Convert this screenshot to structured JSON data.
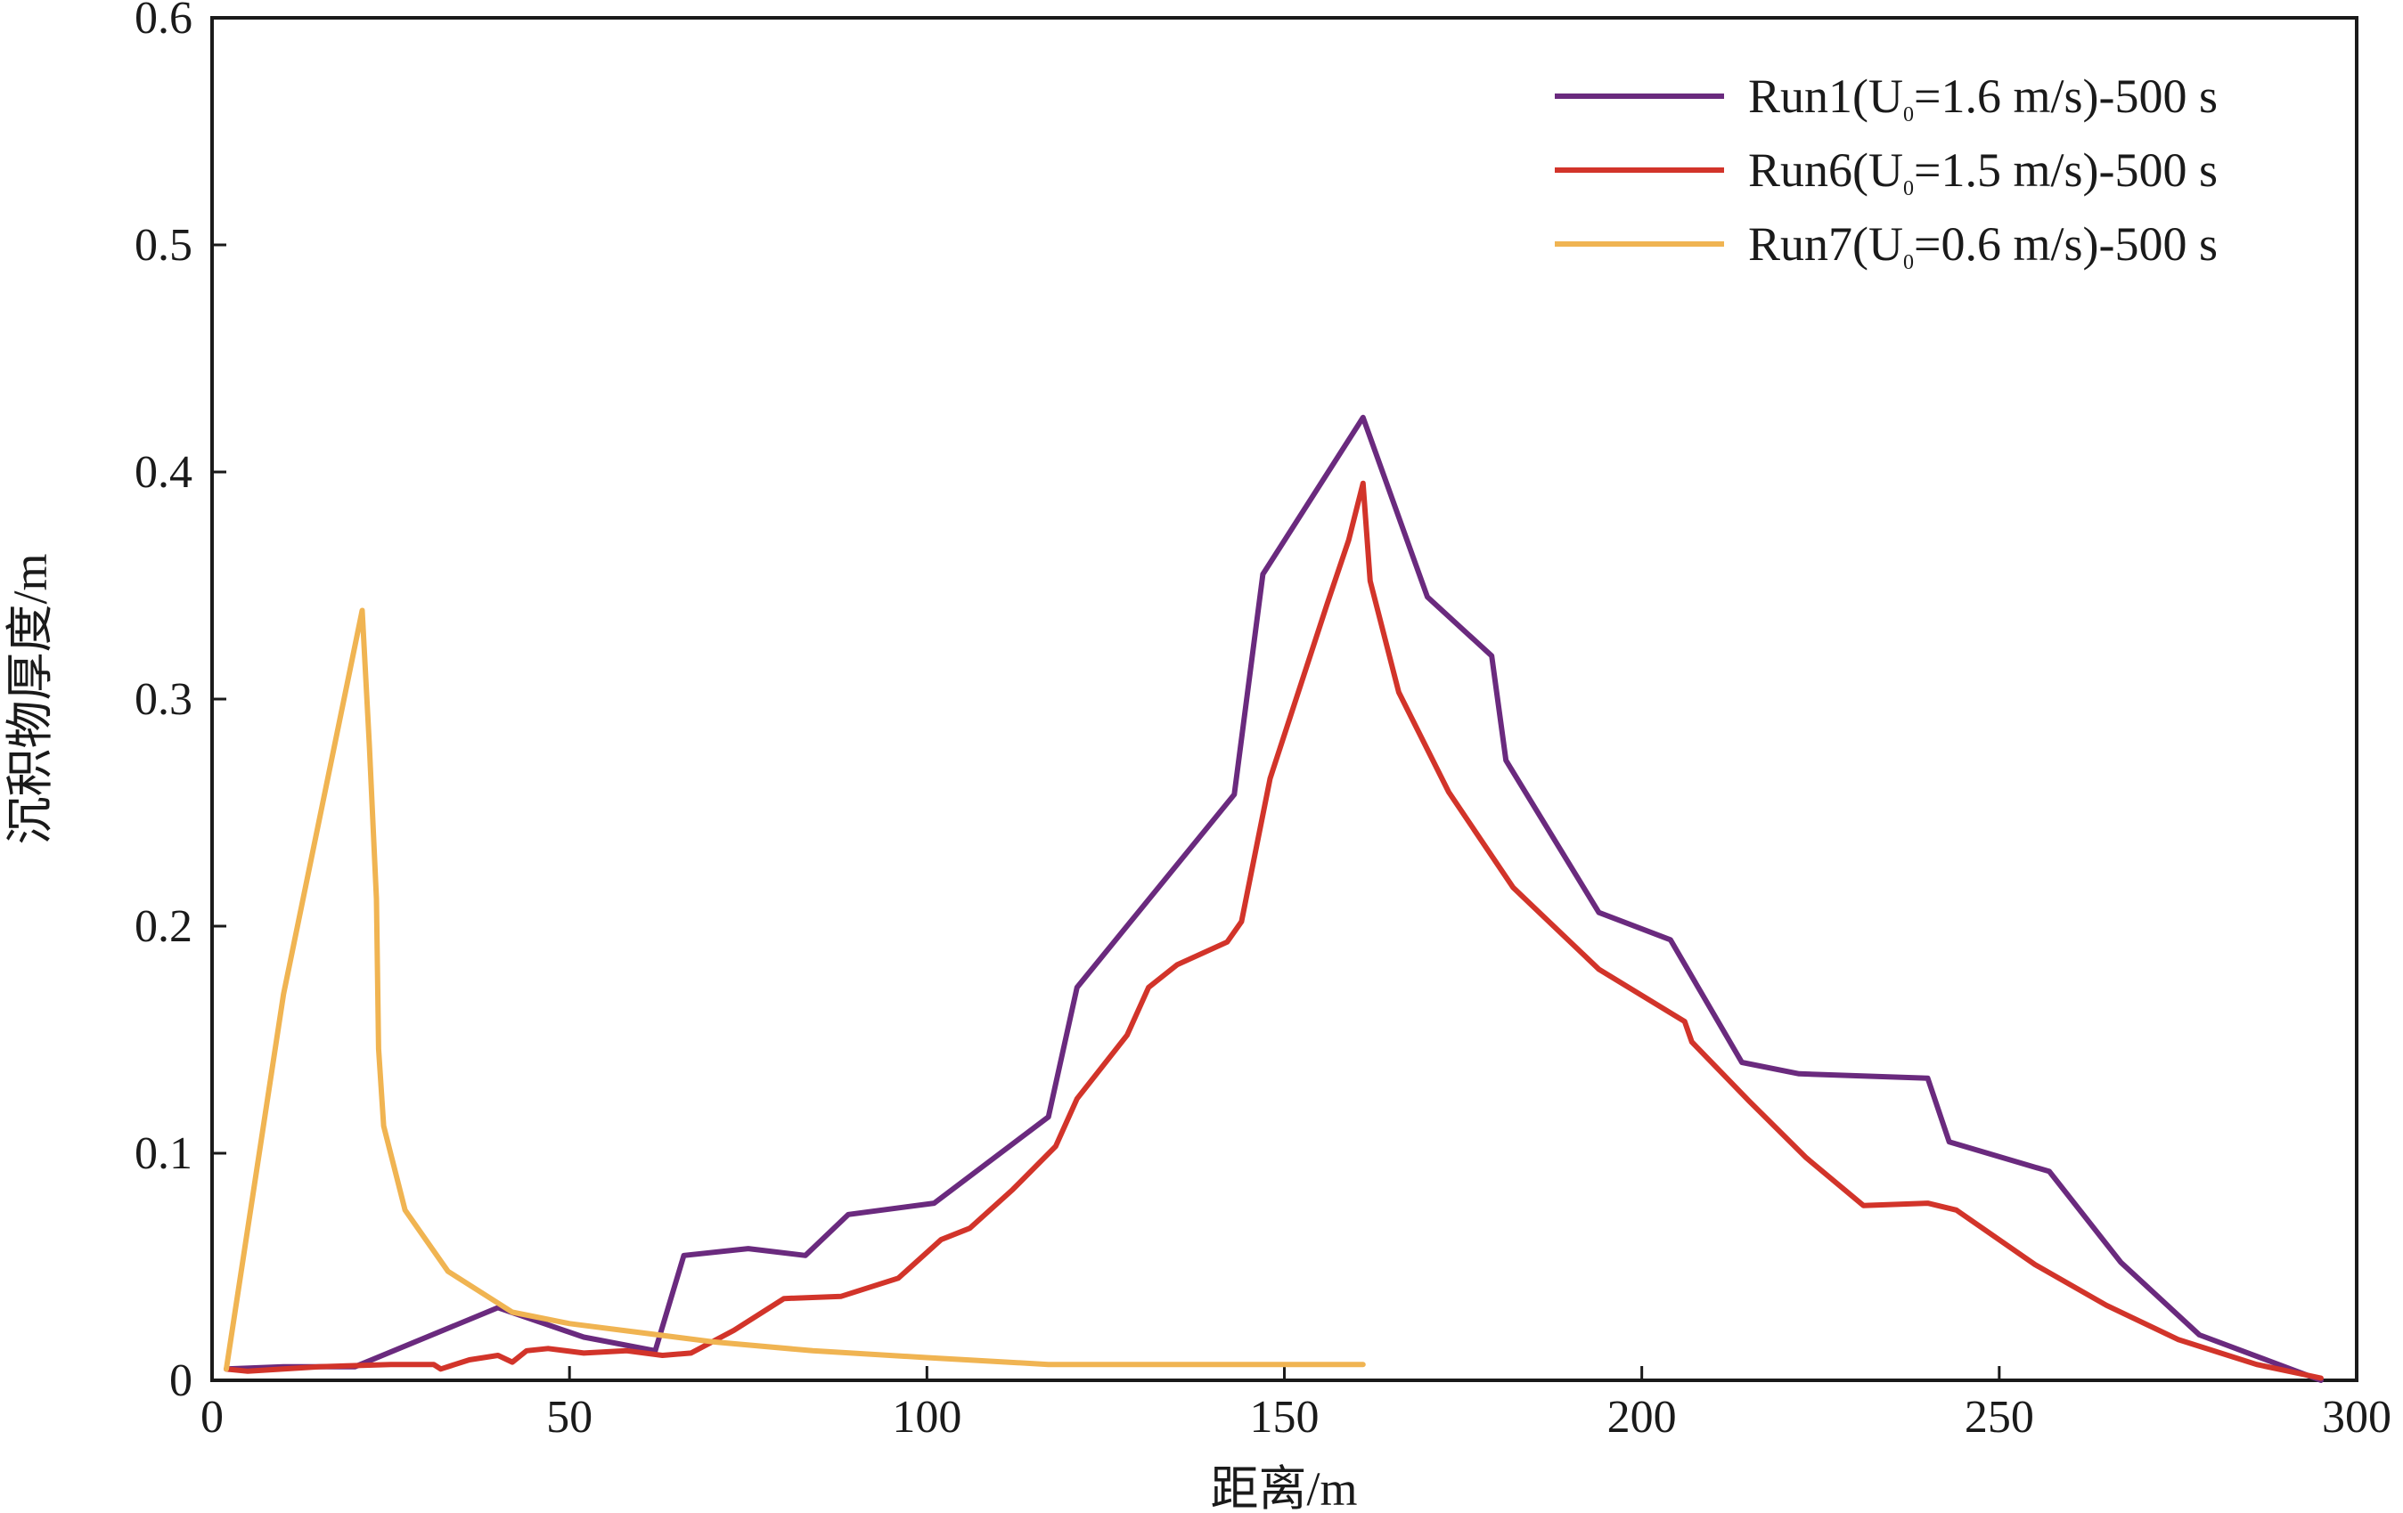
{
  "chart_data": {
    "type": "line",
    "xlabel": "距离/m",
    "ylabel": "沉积物厚度/m",
    "xlim": [
      0,
      300
    ],
    "ylim": [
      0,
      0.6
    ],
    "x_ticks": [
      "0",
      "50",
      "100",
      "150",
      "200",
      "250",
      "300"
    ],
    "y_ticks": [
      "0",
      "0.1",
      "0.2",
      "0.3",
      "0.4",
      "0.5",
      "0.6"
    ],
    "grid": false,
    "legend_position": "top-right",
    "series": [
      {
        "name": "Run1(U₀=1.6 m/s)-500 s",
        "label_prefix": "Run1(U",
        "label_sub": "0",
        "label_suffix": "=1.6 m/s)-500 s",
        "color": "#6a2a7e",
        "points": [
          [
            2,
            0.005
          ],
          [
            10,
            0.006
          ],
          [
            20,
            0.006
          ],
          [
            40,
            0.032
          ],
          [
            52,
            0.019
          ],
          [
            62,
            0.013
          ],
          [
            66,
            0.055
          ],
          [
            75,
            0.058
          ],
          [
            83,
            0.055
          ],
          [
            89,
            0.073
          ],
          [
            101,
            0.078
          ],
          [
            117,
            0.116
          ],
          [
            121,
            0.173
          ],
          [
            143,
            0.258
          ],
          [
            147,
            0.355
          ],
          [
            161,
            0.424
          ],
          [
            170,
            0.345
          ],
          [
            179,
            0.319
          ],
          [
            181,
            0.273
          ],
          [
            194,
            0.206
          ],
          [
            204,
            0.194
          ],
          [
            214,
            0.14
          ],
          [
            222,
            0.135
          ],
          [
            240,
            0.133
          ],
          [
            243,
            0.105
          ],
          [
            257,
            0.092
          ],
          [
            267,
            0.052
          ],
          [
            278,
            0.02
          ],
          [
            295,
            0.0
          ]
        ]
      },
      {
        "name": "Run6(U₀=1.5 m/s)-500 s",
        "label_prefix": "Run6(U",
        "label_sub": "0",
        "label_suffix": "=1.5 m/s)-500 s",
        "color": "#d2342a",
        "points": [
          [
            2,
            0.005
          ],
          [
            5,
            0.004
          ],
          [
            15,
            0.006
          ],
          [
            25,
            0.007
          ],
          [
            31,
            0.007
          ],
          [
            32,
            0.005
          ],
          [
            36,
            0.009
          ],
          [
            40,
            0.011
          ],
          [
            42,
            0.008
          ],
          [
            44,
            0.013
          ],
          [
            47,
            0.014
          ],
          [
            52,
            0.012
          ],
          [
            58,
            0.013
          ],
          [
            63,
            0.011
          ],
          [
            67,
            0.012
          ],
          [
            73,
            0.022
          ],
          [
            80,
            0.036
          ],
          [
            88,
            0.037
          ],
          [
            96,
            0.045
          ],
          [
            102,
            0.062
          ],
          [
            106,
            0.067
          ],
          [
            112,
            0.084
          ],
          [
            118,
            0.103
          ],
          [
            121,
            0.124
          ],
          [
            128,
            0.152
          ],
          [
            131,
            0.173
          ],
          [
            135,
            0.183
          ],
          [
            142,
            0.193
          ],
          [
            144,
            0.202
          ],
          [
            148,
            0.265
          ],
          [
            156,
            0.342
          ],
          [
            159,
            0.37
          ],
          [
            161,
            0.395
          ],
          [
            162,
            0.352
          ],
          [
            166,
            0.303
          ],
          [
            173,
            0.259
          ],
          [
            182,
            0.217
          ],
          [
            194,
            0.181
          ],
          [
            206,
            0.158
          ],
          [
            207,
            0.149
          ],
          [
            215,
            0.123
          ],
          [
            223,
            0.098
          ],
          [
            231,
            0.077
          ],
          [
            240,
            0.078
          ],
          [
            244,
            0.075
          ],
          [
            255,
            0.051
          ],
          [
            265,
            0.033
          ],
          [
            275,
            0.018
          ],
          [
            286,
            0.007
          ],
          [
            295,
            0.001
          ]
        ]
      },
      {
        "name": "Run7(U₀=0.6 m/s)-500 s",
        "label_prefix": "Run7(U",
        "label_sub": "0",
        "label_suffix": "=0.6 m/s)-500 s",
        "color": "#f0b452",
        "points": [
          [
            2,
            0.005
          ],
          [
            10,
            0.17
          ],
          [
            21,
            0.339
          ],
          [
            22,
            0.28
          ],
          [
            23,
            0.212
          ],
          [
            23.3,
            0.146
          ],
          [
            24,
            0.112
          ],
          [
            27,
            0.075
          ],
          [
            33,
            0.048
          ],
          [
            42,
            0.03
          ],
          [
            50,
            0.025
          ],
          [
            60,
            0.021
          ],
          [
            70,
            0.017
          ],
          [
            84,
            0.013
          ],
          [
            100,
            0.01
          ],
          [
            117,
            0.007
          ],
          [
            130,
            0.007
          ],
          [
            150,
            0.007
          ],
          [
            161,
            0.007
          ]
        ]
      }
    ]
  }
}
